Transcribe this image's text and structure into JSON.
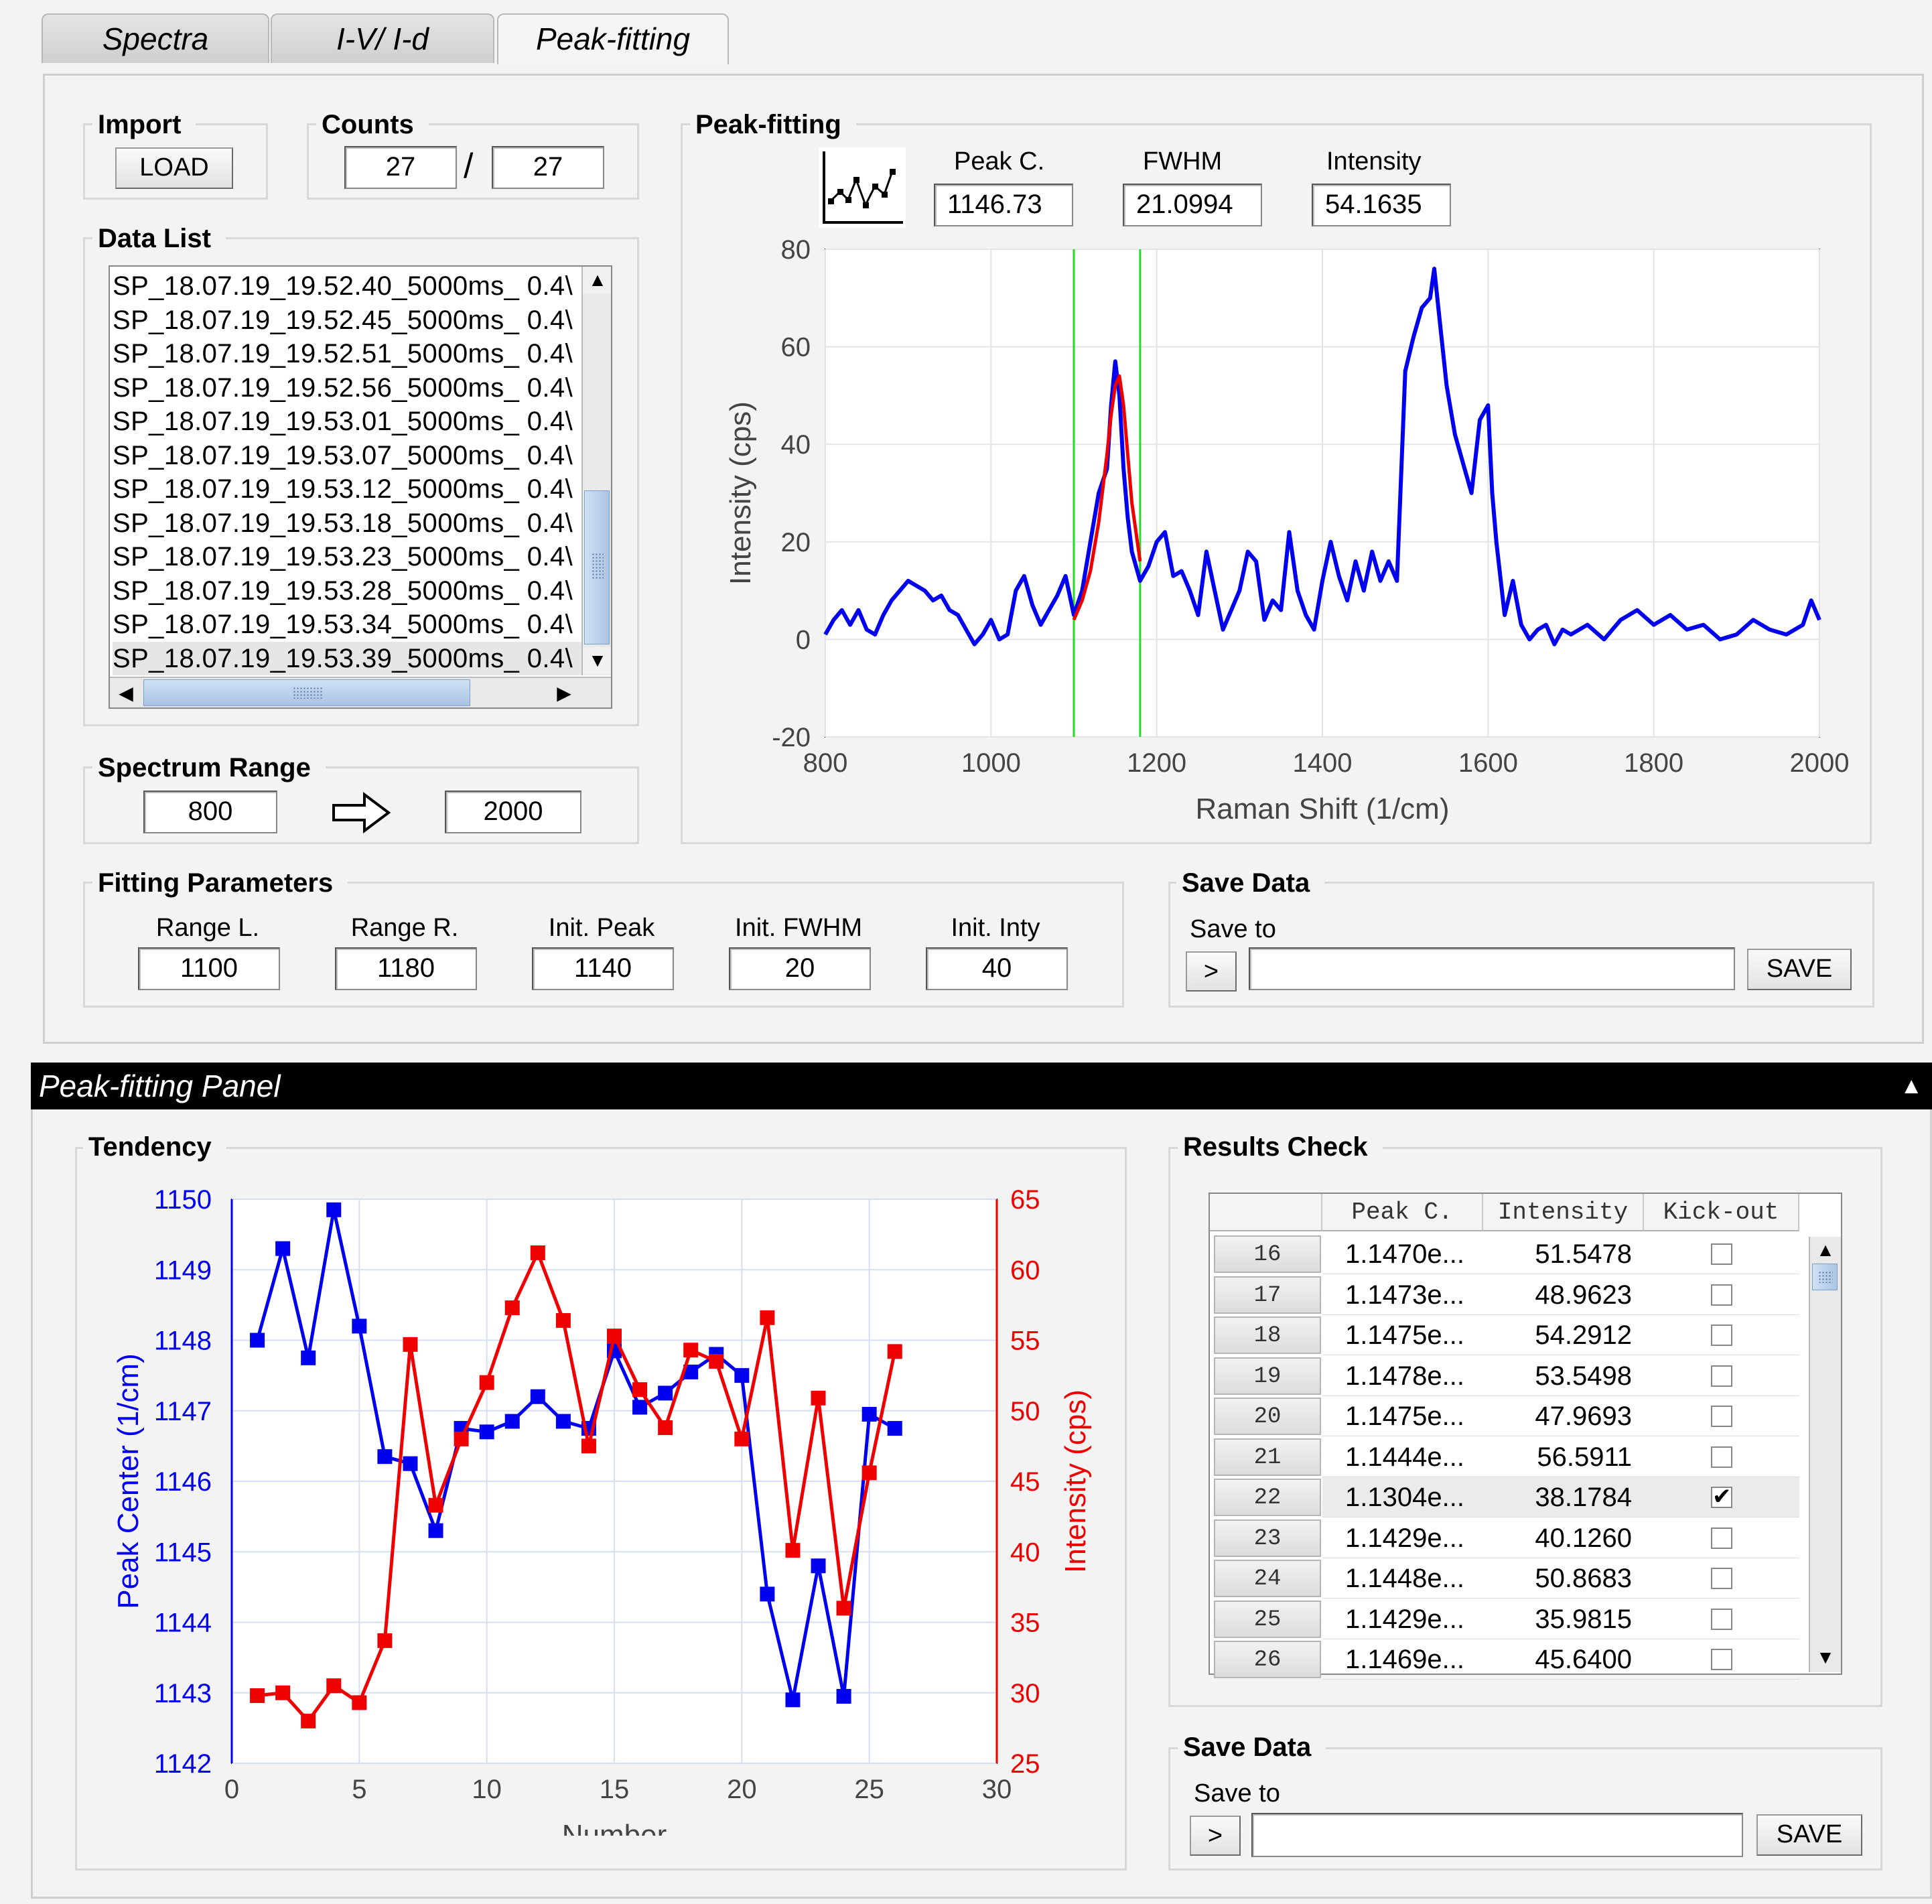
{
  "tabs": [
    {
      "label": "Spectra"
    },
    {
      "label": "I-V/ I-d"
    },
    {
      "label": "Peak-fitting"
    }
  ],
  "import": {
    "title": "Import",
    "load_label": "LOAD"
  },
  "counts": {
    "title": "Counts",
    "current": "27",
    "separator": "/",
    "total": "27"
  },
  "data_list": {
    "title": "Data List",
    "items": [
      "SP_18.07.19_19.52.40_5000ms_ 0.4\\",
      "SP_18.07.19_19.52.45_5000ms_ 0.4\\",
      "SP_18.07.19_19.52.51_5000ms_ 0.4\\",
      "SP_18.07.19_19.52.56_5000ms_ 0.4\\",
      "SP_18.07.19_19.53.01_5000ms_ 0.4\\",
      "SP_18.07.19_19.53.07_5000ms_ 0.4\\",
      "SP_18.07.19_19.53.12_5000ms_ 0.4\\",
      "SP_18.07.19_19.53.18_5000ms_ 0.4\\",
      "SP_18.07.19_19.53.23_5000ms_ 0.4\\",
      "SP_18.07.19_19.53.28_5000ms_ 0.4\\",
      "SP_18.07.19_19.53.34_5000ms_ 0.4\\",
      "SP_18.07.19_19.53.39_5000ms_ 0.4\\"
    ],
    "selected_index": 11
  },
  "spectrum_range": {
    "title": "Spectrum Range",
    "from": "800",
    "to": "2000"
  },
  "peak_fitting": {
    "title": "Peak-fitting",
    "peak_c_label": "Peak C.",
    "peak_c": "1146.73",
    "fwhm_label": "FWHM",
    "fwhm": "21.0994",
    "intensity_label": "Intensity",
    "intensity": "54.1635"
  },
  "fitting_parameters": {
    "title": "Fitting Parameters",
    "fields": [
      {
        "label": "Range L.",
        "value": "1100"
      },
      {
        "label": "Range R.",
        "value": "1180"
      },
      {
        "label": "Init. Peak",
        "value": "1140"
      },
      {
        "label": "Init. FWHM",
        "value": "20"
      },
      {
        "label": "Init. Inty",
        "value": "40"
      }
    ]
  },
  "save_top": {
    "title": "Save Data",
    "save_to_label": "Save to",
    "browse_label": ">",
    "path": "",
    "save_label": "SAVE"
  },
  "panel": {
    "title": "Peak-fitting Panel",
    "collapse_glyph": "▲"
  },
  "tendency": {
    "title": "Tendency"
  },
  "results": {
    "title": "Results Check",
    "columns": [
      "Peak C.",
      "Intensity",
      "Kick-out"
    ],
    "rows": [
      {
        "n": "16",
        "peak": "1.1470e...",
        "intensity": "51.5478",
        "kick": false
      },
      {
        "n": "17",
        "peak": "1.1473e...",
        "intensity": "48.9623",
        "kick": false
      },
      {
        "n": "18",
        "peak": "1.1475e...",
        "intensity": "54.2912",
        "kick": false
      },
      {
        "n": "19",
        "peak": "1.1478e...",
        "intensity": "53.5498",
        "kick": false
      },
      {
        "n": "20",
        "peak": "1.1475e...",
        "intensity": "47.9693",
        "kick": false
      },
      {
        "n": "21",
        "peak": "1.1444e...",
        "intensity": "56.5911",
        "kick": false
      },
      {
        "n": "22",
        "peak": "1.1304e...",
        "intensity": "38.1784",
        "kick": true
      },
      {
        "n": "23",
        "peak": "1.1429e...",
        "intensity": "40.1260",
        "kick": false
      },
      {
        "n": "24",
        "peak": "1.1448e...",
        "intensity": "50.8683",
        "kick": false
      },
      {
        "n": "25",
        "peak": "1.1429e...",
        "intensity": "35.9815",
        "kick": false
      },
      {
        "n": "26",
        "peak": "1.1469e...",
        "intensity": "45.6400",
        "kick": false
      }
    ]
  },
  "save_bottom": {
    "title": "Save Data",
    "save_to_label": "Save to",
    "browse_label": ">",
    "path": "",
    "save_label": "SAVE"
  },
  "chart_data": [
    {
      "type": "line",
      "title": "",
      "xlabel": "Raman Shift (1/cm)",
      "ylabel": "Intensity (cps)",
      "xlim": [
        800,
        2000
      ],
      "ylim": [
        -20,
        80
      ],
      "xticks": [
        800,
        1000,
        1200,
        1400,
        1600,
        1800,
        2000
      ],
      "yticks": [
        -20,
        0,
        20,
        40,
        60,
        80
      ],
      "grid": true,
      "colors": {
        "spectrum": "#0000ee",
        "fit": "#ee0000",
        "range_lines": "#22dd22"
      },
      "range_lines_x": [
        1100,
        1180
      ],
      "series": [
        {
          "x": [
            800,
            810,
            820,
            830,
            840,
            850,
            860,
            870,
            880,
            890,
            900,
            910,
            920,
            930,
            940,
            950,
            960,
            970,
            980,
            990,
            1000,
            1010,
            1020,
            1030,
            1040,
            1050,
            1060,
            1070,
            1080,
            1090,
            1100,
            1110,
            1120,
            1130,
            1140,
            1145,
            1150,
            1155,
            1160,
            1165,
            1170,
            1180,
            1190,
            1200,
            1210,
            1220,
            1230,
            1240,
            1250,
            1260,
            1270,
            1280,
            1290,
            1300,
            1310,
            1320,
            1330,
            1340,
            1350,
            1360,
            1370,
            1380,
            1390,
            1400,
            1410,
            1420,
            1430,
            1440,
            1450,
            1460,
            1470,
            1480,
            1490,
            1500,
            1510,
            1520,
            1530,
            1535,
            1540,
            1550,
            1560,
            1570,
            1580,
            1590,
            1600,
            1605,
            1610,
            1620,
            1630,
            1640,
            1650,
            1660,
            1670,
            1680,
            1690,
            1700,
            1720,
            1740,
            1760,
            1780,
            1800,
            1820,
            1840,
            1860,
            1880,
            1900,
            1920,
            1940,
            1960,
            1980,
            1990,
            2000
          ],
          "y": [
            1,
            4,
            6,
            3,
            6,
            2,
            1,
            5,
            8,
            10,
            12,
            11,
            10,
            8,
            9,
            6,
            5,
            2,
            -1,
            1,
            4,
            0,
            1,
            10,
            13,
            7,
            3,
            6,
            9,
            13,
            5,
            10,
            20,
            30,
            35,
            48,
            57,
            50,
            35,
            25,
            18,
            12,
            15,
            20,
            22,
            13,
            14,
            10,
            5,
            18,
            10,
            2,
            6,
            10,
            18,
            16,
            4,
            8,
            6,
            22,
            10,
            5,
            2,
            12,
            20,
            13,
            8,
            16,
            10,
            18,
            12,
            16,
            12,
            55,
            62,
            68,
            70,
            76,
            68,
            52,
            42,
            36,
            30,
            45,
            48,
            30,
            20,
            5,
            12,
            3,
            0,
            2,
            3,
            -1,
            2,
            1,
            3,
            0,
            4,
            6,
            3,
            5,
            2,
            3,
            0,
            1,
            4,
            2,
            1,
            3,
            8,
            4
          ]
        },
        {
          "x": [
            1100,
            1110,
            1120,
            1130,
            1140,
            1145,
            1150,
            1155,
            1160,
            1165,
            1170,
            1180
          ],
          "y": [
            4,
            8,
            14,
            24,
            38,
            46,
            52,
            54,
            48,
            38,
            28,
            16
          ]
        }
      ]
    },
    {
      "type": "line",
      "title": "",
      "xlabel": "Number",
      "ylabel": "Peak Center (1/cm)",
      "y2label": "Intensity (cps)",
      "xlim": [
        0,
        30
      ],
      "ylim": [
        1142,
        1150
      ],
      "y2lim": [
        25,
        65
      ],
      "xticks": [
        0,
        5,
        10,
        15,
        20,
        25,
        30
      ],
      "yticks": [
        1142,
        1143,
        1144,
        1145,
        1146,
        1147,
        1148,
        1149,
        1150
      ],
      "y2ticks": [
        25,
        30,
        35,
        40,
        45,
        50,
        55,
        60,
        65
      ],
      "grid": true,
      "markers": "square",
      "x": [
        1,
        2,
        3,
        4,
        5,
        6,
        7,
        8,
        9,
        10,
        11,
        12,
        13,
        14,
        15,
        16,
        17,
        18,
        19,
        20,
        21,
        22,
        23,
        24,
        25,
        26
      ],
      "series": [
        {
          "axis": "left",
          "color": "#0000ee",
          "values": [
            1148.0,
            1149.3,
            1147.75,
            1149.85,
            1148.2,
            1146.35,
            1146.25,
            1145.3,
            1146.75,
            1146.7,
            1146.85,
            1147.2,
            1146.85,
            1146.75,
            1147.85,
            1147.05,
            1147.25,
            1147.55,
            1147.8,
            1147.5,
            1144.4,
            1142.9,
            1144.8,
            1142.95,
            1146.95,
            1146.75
          ]
        },
        {
          "axis": "right",
          "color": "#ee0000",
          "values": [
            29.8,
            30.0,
            28.0,
            30.5,
            29.3,
            33.7,
            54.7,
            43.3,
            48.0,
            52.0,
            57.3,
            61.2,
            56.4,
            47.5,
            55.3,
            51.5,
            48.8,
            54.3,
            53.5,
            48.0,
            56.6,
            40.1,
            50.9,
            36.0,
            45.6,
            54.2
          ]
        }
      ]
    }
  ]
}
